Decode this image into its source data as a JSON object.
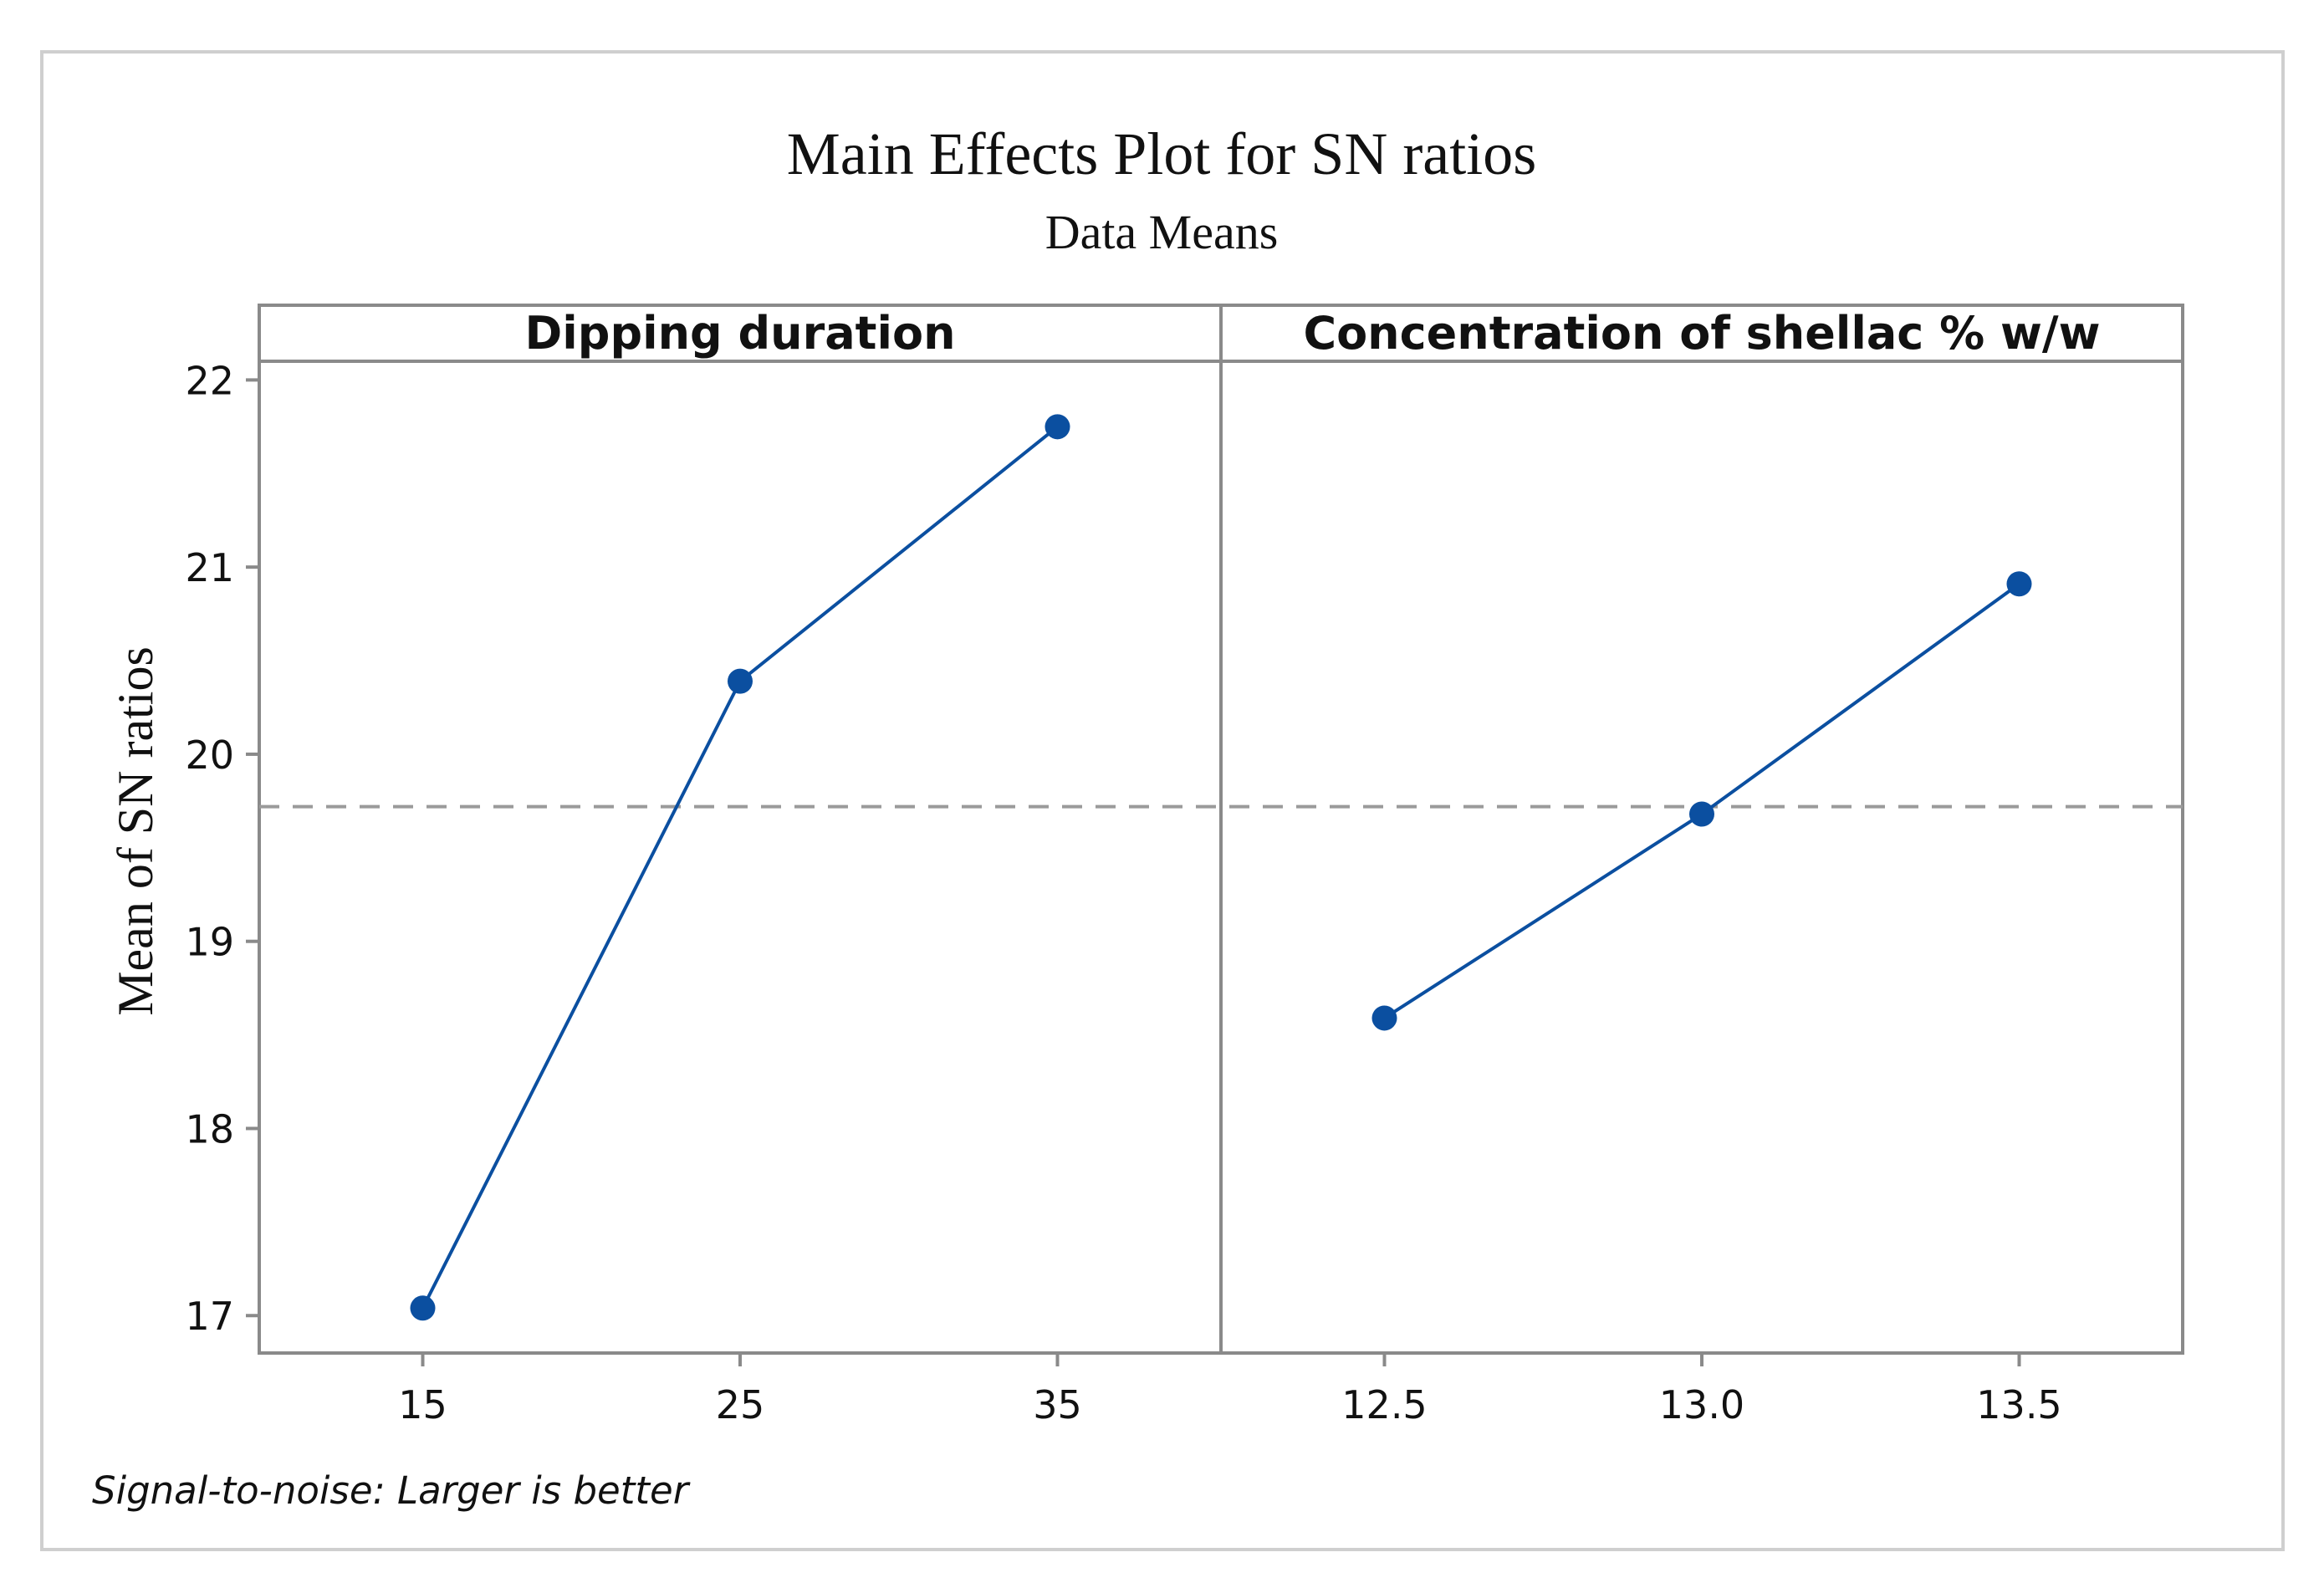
{
  "colors": {
    "series": "#0b4fa0",
    "frame": "#8a8a8a",
    "reference": "#9a9a9a",
    "outer_border": "#cfcfcf",
    "text": "#111111"
  },
  "chart_data": {
    "type": "line",
    "title": "Main Effects Plot for SN ratios",
    "subtitle": "Data Means",
    "ylabel": "Mean of SN ratios",
    "ylim": [
      16.8,
      22.1
    ],
    "yticks": [
      "17",
      "18",
      "19",
      "20",
      "21",
      "22"
    ],
    "reference_line": 19.72,
    "footnote": "Signal-to-noise: Larger is better",
    "panels": [
      {
        "title": "Dipping duration",
        "categories": [
          "15",
          "25",
          "35"
        ],
        "values": [
          17.04,
          20.39,
          21.75
        ]
      },
      {
        "title": "Concentration of shellac % w/w",
        "categories": [
          "12.5",
          "13.0",
          "13.5"
        ],
        "values": [
          18.59,
          19.68,
          20.91
        ]
      }
    ]
  }
}
